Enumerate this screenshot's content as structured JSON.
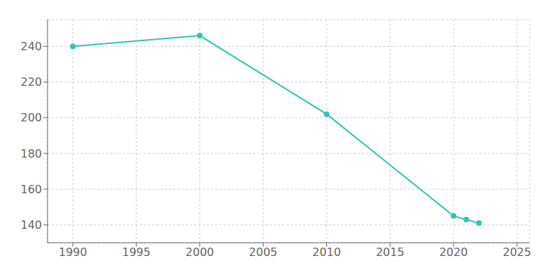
{
  "chart_data": {
    "type": "line",
    "x": [
      1990,
      2000,
      2010,
      2020,
      2021,
      2022
    ],
    "values": [
      240,
      246,
      202,
      145,
      143,
      141
    ],
    "color": "#2ec4b6",
    "marker": "circle",
    "xlim": [
      1988,
      2026
    ],
    "ylim": [
      130,
      255
    ],
    "xticks": [
      1990,
      1995,
      2000,
      2005,
      2010,
      2015,
      2020,
      2025
    ],
    "yticks": [
      140,
      160,
      180,
      200,
      220,
      240
    ],
    "grid": true
  }
}
